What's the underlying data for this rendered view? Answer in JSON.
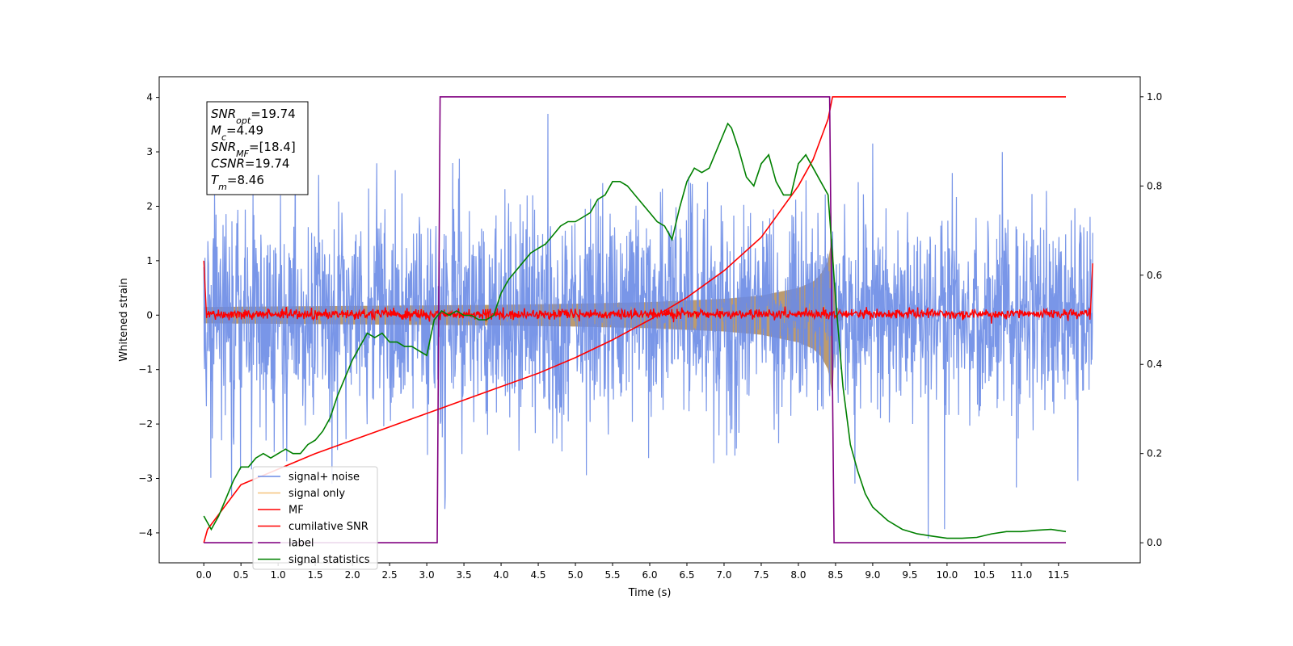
{
  "chart_data": {
    "type": "line",
    "xlabel": "Time (s)",
    "ylabel": "Whitened strain",
    "xlim": [
      -0.6,
      12.6
    ],
    "ylim": [
      -4.55,
      4.38
    ],
    "y2lim": [
      -0.045,
      1.045
    ],
    "x_ticks": [
      "0.0",
      "0.5",
      "1.0",
      "1.5",
      "2.0",
      "2.5",
      "3.0",
      "3.5",
      "4.0",
      "4.5",
      "5.0",
      "5.5",
      "6.0",
      "6.5",
      "7.0",
      "7.5",
      "8.0",
      "8.5",
      "9.0",
      "9.5",
      "10.0",
      "10.5",
      "11.0",
      "11.5"
    ],
    "y_ticks": [
      "4",
      "3",
      "2",
      "1",
      "0",
      "−1",
      "−2",
      "−3",
      "−4"
    ],
    "y2_ticks": [
      "1.0",
      "0.8",
      "0.6",
      "0.4",
      "0.2",
      "0.0"
    ],
    "annotations": {
      "snr_opt": {
        "name": "SNR",
        "sub": "opt",
        "value": "=19.74"
      },
      "mc": {
        "name": "M",
        "sub": "c",
        "value": "=4.49"
      },
      "snr_mf": {
        "name": "SNR",
        "sub": "MF",
        "value": "=[18.4]"
      },
      "csnr": {
        "name": "CSNR",
        "sub": "",
        "value": "=19.74"
      },
      "tm": {
        "name": "T",
        "sub": "m",
        "value": "=8.46"
      }
    },
    "legend": {
      "placement": "lower-left",
      "entries": [
        {
          "label": "signal+ noise",
          "color": "#6a8be6"
        },
        {
          "label": "signal only",
          "color": "#f5c27a"
        },
        {
          "label": "MF",
          "color": "#ff0000"
        },
        {
          "label": "cumilative SNR",
          "color": "#ff0000"
        },
        {
          "label": "label",
          "color": "#800080"
        },
        {
          "label": "signal statistics",
          "color": "#008000"
        }
      ]
    },
    "series": [
      {
        "name": "signal+ noise",
        "axis": "left",
        "color": "#6a8be6",
        "description": "whitened noisy strain, amplitude about ±2 with spikes to ±4",
        "typical_range": [
          -2.5,
          2.5
        ],
        "extremes": [
          -4.1,
          4.0
        ]
      },
      {
        "name": "signal only",
        "axis": "left",
        "color": "#f5c27a",
        "description": "chirp envelope growing from ±0.15 to ±1.5 at merger",
        "x": [
          0.0,
          1.0,
          2.0,
          3.0,
          4.0,
          5.0,
          6.0,
          7.0,
          7.5,
          8.0,
          8.2,
          8.3,
          8.4,
          8.46,
          8.5,
          8.6
        ],
        "envelope": [
          0.15,
          0.16,
          0.17,
          0.18,
          0.19,
          0.21,
          0.24,
          0.3,
          0.36,
          0.5,
          0.62,
          0.75,
          1.0,
          1.5,
          0.15,
          0.08
        ]
      },
      {
        "name": "MF",
        "axis": "left",
        "color": "#ff0000",
        "description": "matched filter output, near 0 with ±0.1 noise, 1.0 at the edges",
        "level": 0.02
      },
      {
        "name": "cumilative SNR",
        "axis": "right",
        "color": "#ff0000",
        "x": [
          0.0,
          0.05,
          0.5,
          1.0,
          1.5,
          2.0,
          2.5,
          3.0,
          3.5,
          4.0,
          4.5,
          5.0,
          5.5,
          6.0,
          6.5,
          7.0,
          7.5,
          8.0,
          8.2,
          8.4,
          8.46,
          11.6
        ],
        "y": [
          0.0,
          0.03,
          0.13,
          0.165,
          0.2,
          0.23,
          0.26,
          0.29,
          0.32,
          0.35,
          0.38,
          0.415,
          0.455,
          0.5,
          0.55,
          0.61,
          0.685,
          0.8,
          0.86,
          0.95,
          1.0,
          1.0
        ]
      },
      {
        "name": "label",
        "axis": "right",
        "color": "#800080",
        "x": [
          0.0,
          3.14,
          3.18,
          8.42,
          8.48,
          11.6
        ],
        "y": [
          0.0,
          0.0,
          1.0,
          1.0,
          0.0,
          0.0
        ]
      },
      {
        "name": "signal statistics",
        "axis": "right",
        "color": "#008000",
        "x": [
          0.0,
          0.1,
          0.2,
          0.3,
          0.4,
          0.5,
          0.6,
          0.7,
          0.8,
          0.9,
          1.0,
          1.1,
          1.2,
          1.3,
          1.4,
          1.5,
          1.6,
          1.7,
          1.8,
          1.9,
          2.0,
          2.1,
          2.2,
          2.3,
          2.4,
          2.5,
          2.6,
          2.7,
          2.8,
          2.9,
          3.0,
          3.1,
          3.2,
          3.3,
          3.4,
          3.5,
          3.6,
          3.7,
          3.8,
          3.9,
          4.0,
          4.1,
          4.2,
          4.3,
          4.4,
          4.5,
          4.6,
          4.7,
          4.8,
          4.9,
          5.0,
          5.1,
          5.2,
          5.3,
          5.4,
          5.5,
          5.6,
          5.7,
          5.8,
          5.9,
          6.0,
          6.1,
          6.2,
          6.3,
          6.4,
          6.5,
          6.6,
          6.7,
          6.8,
          6.9,
          7.0,
          7.05,
          7.1,
          7.2,
          7.3,
          7.4,
          7.5,
          7.6,
          7.7,
          7.8,
          7.9,
          8.0,
          8.1,
          8.2,
          8.3,
          8.4,
          8.5,
          8.6,
          8.7,
          8.8,
          8.9,
          9.0,
          9.2,
          9.4,
          9.6,
          9.8,
          10.0,
          10.2,
          10.4,
          10.6,
          10.8,
          11.0,
          11.2,
          11.4,
          11.6
        ],
        "y": [
          0.06,
          0.03,
          0.06,
          0.1,
          0.14,
          0.17,
          0.17,
          0.19,
          0.2,
          0.19,
          0.2,
          0.21,
          0.2,
          0.2,
          0.22,
          0.23,
          0.25,
          0.28,
          0.33,
          0.37,
          0.41,
          0.44,
          0.47,
          0.46,
          0.47,
          0.45,
          0.45,
          0.44,
          0.44,
          0.43,
          0.42,
          0.5,
          0.52,
          0.51,
          0.52,
          0.51,
          0.51,
          0.5,
          0.5,
          0.51,
          0.56,
          0.59,
          0.61,
          0.63,
          0.65,
          0.66,
          0.67,
          0.69,
          0.71,
          0.72,
          0.72,
          0.73,
          0.74,
          0.77,
          0.78,
          0.81,
          0.81,
          0.8,
          0.78,
          0.76,
          0.74,
          0.72,
          0.71,
          0.68,
          0.75,
          0.81,
          0.84,
          0.83,
          0.84,
          0.88,
          0.92,
          0.94,
          0.93,
          0.88,
          0.82,
          0.8,
          0.85,
          0.87,
          0.81,
          0.78,
          0.78,
          0.85,
          0.87,
          0.84,
          0.81,
          0.78,
          0.55,
          0.35,
          0.22,
          0.16,
          0.11,
          0.08,
          0.05,
          0.03,
          0.02,
          0.015,
          0.01,
          0.01,
          0.012,
          0.02,
          0.025,
          0.025,
          0.028,
          0.03,
          0.025
        ]
      }
    ]
  }
}
